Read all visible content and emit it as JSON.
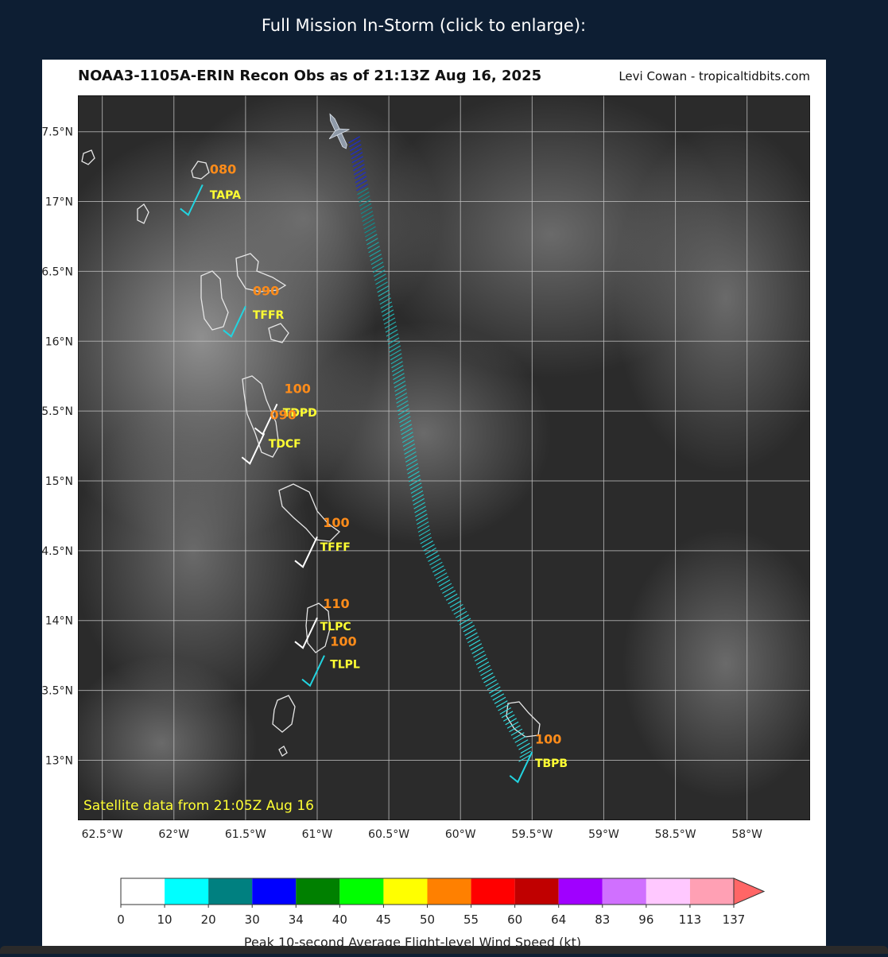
{
  "caption": "Full Mission In-Storm (click to enlarge):",
  "map": {
    "title": "NOAA3-1105A-ERIN Recon Obs as of 21:13Z Aug 16, 2025",
    "credit": "Levi Cowan - tropicaltidbits.com",
    "satellite_note": "Satellite data from 21:05Z Aug 16",
    "lon_range": [
      -62.67,
      -57.56
    ],
    "lat_range": [
      12.57,
      17.76
    ],
    "lon_ticks": [
      {
        "value": -62.5,
        "label": "62.5°W"
      },
      {
        "value": -62.0,
        "label": "62°W"
      },
      {
        "value": -61.5,
        "label": "61.5°W"
      },
      {
        "value": -61.0,
        "label": "61°W"
      },
      {
        "value": -60.5,
        "label": "60.5°W"
      },
      {
        "value": -60.0,
        "label": "60°W"
      },
      {
        "value": -59.5,
        "label": "59.5°W"
      },
      {
        "value": -59.0,
        "label": "59°W"
      },
      {
        "value": -58.5,
        "label": "58.5°W"
      },
      {
        "value": -58.0,
        "label": "58°W"
      }
    ],
    "lat_ticks": [
      {
        "value": 17.5,
        "label": "17.5°N"
      },
      {
        "value": 17.0,
        "label": "17°N"
      },
      {
        "value": 16.5,
        "label": "16.5°N"
      },
      {
        "value": 16.0,
        "label": "16°N"
      },
      {
        "value": 15.5,
        "label": "15.5°N"
      },
      {
        "value": 15.0,
        "label": "15°N"
      },
      {
        "value": 14.5,
        "label": "14.5°N"
      },
      {
        "value": 14.0,
        "label": "14°N"
      },
      {
        "value": 13.5,
        "label": "13.5°N"
      },
      {
        "value": 13.0,
        "label": "13°N"
      }
    ],
    "stations": [
      {
        "id": "TAPA",
        "value": "080",
        "lon": -61.8,
        "lat": 17.12,
        "val_lon": -61.75,
        "val_lat": 17.2,
        "id_lon": -61.75,
        "id_lat": 17.02,
        "barb_color": "#22d4e0"
      },
      {
        "id": "TFFR",
        "value": "090",
        "lon": -61.5,
        "lat": 16.25,
        "val_lon": -61.45,
        "val_lat": 16.33,
        "id_lon": -61.45,
        "id_lat": 16.16,
        "barb_color": "#22d4e0"
      },
      {
        "id": "TDPD",
        "value": "100",
        "lon": -61.28,
        "lat": 15.55,
        "val_lon": -61.23,
        "val_lat": 15.63,
        "id_lon": -61.24,
        "id_lat": 15.46,
        "barb_color": "#ffffff"
      },
      {
        "id": "TDCF",
        "value": "090",
        "lon": -61.37,
        "lat": 15.34,
        "val_lon": -61.33,
        "val_lat": 15.44,
        "id_lon": -61.34,
        "id_lat": 15.24,
        "barb_color": "#ffffff"
      },
      {
        "id": "TFFF",
        "value": "100",
        "lon": -61.0,
        "lat": 14.6,
        "val_lon": -60.96,
        "val_lat": 14.67,
        "id_lon": -60.98,
        "id_lat": 14.5,
        "barb_color": "#ffffff"
      },
      {
        "id": "TLPC",
        "value": "110",
        "lon": -61.0,
        "lat": 14.02,
        "val_lon": -60.96,
        "val_lat": 14.09,
        "id_lon": -60.98,
        "id_lat": 13.93,
        "barb_color": "#ffffff"
      },
      {
        "id": "TLPL",
        "value": "100",
        "lon": -60.95,
        "lat": 13.75,
        "val_lon": -60.91,
        "val_lat": 13.82,
        "id_lon": -60.91,
        "id_lat": 13.66,
        "barb_color": "#22d4e0"
      },
      {
        "id": "TBPB",
        "value": "100",
        "lon": -59.5,
        "lat": 13.06,
        "val_lon": -59.48,
        "val_lat": 13.12,
        "id_lon": -59.48,
        "id_lat": 12.95,
        "barb_color": "#22d4e0"
      }
    ],
    "flight_track": [
      {
        "lon": -60.78,
        "lat": 17.42
      },
      {
        "lon": -60.72,
        "lat": 17.05
      },
      {
        "lon": -60.66,
        "lat": 16.72
      },
      {
        "lon": -60.58,
        "lat": 16.35
      },
      {
        "lon": -60.5,
        "lat": 15.95
      },
      {
        "lon": -60.44,
        "lat": 15.5
      },
      {
        "lon": -60.37,
        "lat": 15.05
      },
      {
        "lon": -60.28,
        "lat": 14.55
      },
      {
        "lon": -60.14,
        "lat": 14.22
      },
      {
        "lon": -59.98,
        "lat": 13.92
      },
      {
        "lon": -59.85,
        "lat": 13.58
      },
      {
        "lon": -59.7,
        "lat": 13.28
      },
      {
        "lon": -59.58,
        "lat": 13.05
      },
      {
        "lon": -59.6,
        "lat": 12.96
      }
    ]
  },
  "colorbar": {
    "label": "Peak 10-second Average Flight-level Wind Speed (kt)",
    "bins": [
      {
        "color": "#ffffff"
      },
      {
        "color": "#00ffff"
      },
      {
        "color": "#008080"
      },
      {
        "color": "#0000ff"
      },
      {
        "color": "#008000"
      },
      {
        "color": "#00ff00"
      },
      {
        "color": "#ffff00"
      },
      {
        "color": "#ff8000"
      },
      {
        "color": "#ff0000"
      },
      {
        "color": "#c00000"
      },
      {
        "color": "#a000ff"
      },
      {
        "color": "#d070ff"
      },
      {
        "color": "#ffc8ff"
      },
      {
        "color": "#ffa0b4"
      }
    ],
    "extend_color": "#ff6666",
    "ticks": [
      "0",
      "10",
      "20",
      "30",
      "34",
      "40",
      "45",
      "50",
      "55",
      "60",
      "64",
      "83",
      "96",
      "113",
      "137"
    ]
  }
}
